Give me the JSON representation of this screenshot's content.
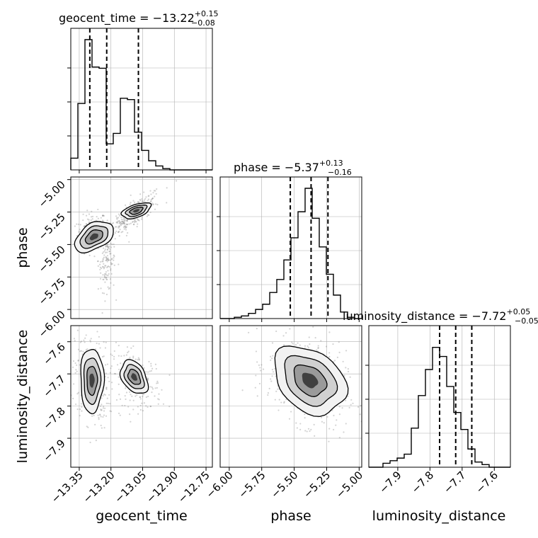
{
  "chart_data": {
    "type": "corner",
    "parameters": [
      "geocent_time",
      "phase",
      "luminosity_distance"
    ],
    "titles": [
      {
        "param": "geocent_time",
        "text": "geocent_time = −13.22",
        "plus": "+0.15",
        "minus": "−0.08"
      },
      {
        "param": "phase",
        "text": "phase = −5.37",
        "plus": "+0.13",
        "minus": "−0.16"
      },
      {
        "param": "luminosity_distance",
        "text": "luminosity_distance = −7.72",
        "plus": "+0.05",
        "minus": "−0.05"
      }
    ],
    "ranges": {
      "geocent_time": [
        -13.39,
        -12.72
      ],
      "phase": [
        -6.07,
        -4.98
      ],
      "luminosity_distance": [
        -7.99,
        -7.55
      ]
    },
    "ticks": {
      "geocent_time": {
        "values": [
          -13.35,
          -13.2,
          -13.05,
          -12.9,
          -12.75
        ],
        "labels": [
          "−13.35",
          "−13.20",
          "−13.05",
          "−12.90",
          "−12.75"
        ]
      },
      "phase": {
        "values": [
          -6.0,
          -5.75,
          -5.5,
          -5.25,
          -5.0
        ],
        "labels": [
          "−6.00",
          "−5.75",
          "−5.50",
          "−5.25",
          "−5.00"
        ]
      },
      "luminosity_distance": {
        "values": [
          -7.9,
          -7.8,
          -7.7,
          -7.6
        ],
        "labels": [
          "−7.9",
          "−7.8",
          "−7.7",
          "−7.6"
        ]
      }
    },
    "axis_labels": {
      "geocent_time": "geocent_time",
      "phase": "phase",
      "luminosity_distance": "luminosity_distance"
    },
    "quantiles": {
      "geocent_time": [
        -13.3,
        -13.22,
        -13.07
      ],
      "phase": [
        -5.53,
        -5.37,
        -5.24
      ],
      "luminosity_distance": [
        -7.77,
        -7.72,
        -7.67
      ]
    },
    "histograms": {
      "geocent_time": {
        "edges_range": [
          -13.39,
          -12.72
        ],
        "counts": [
          0.09,
          0.51,
          1.0,
          0.79,
          0.78,
          0.2,
          0.28,
          0.55,
          0.54,
          0.29,
          0.15,
          0.07,
          0.03,
          0.01,
          0.0,
          0.0,
          0.0,
          0.0,
          0.0,
          0.0
        ]
      },
      "phase": {
        "edges_range": [
          -6.07,
          -4.98
        ],
        "counts": [
          0.0,
          0.0,
          0.01,
          0.02,
          0.04,
          0.07,
          0.11,
          0.2,
          0.3,
          0.45,
          0.62,
          0.82,
          1.0,
          0.77,
          0.55,
          0.34,
          0.18,
          0.05,
          0.01,
          0.0
        ]
      },
      "luminosity_distance": {
        "edges_range": [
          -7.99,
          -7.55
        ],
        "counts": [
          0.0,
          0.0,
          0.03,
          0.05,
          0.07,
          0.1,
          0.3,
          0.55,
          0.75,
          0.92,
          0.85,
          0.62,
          0.42,
          0.29,
          0.14,
          0.04,
          0.02,
          0.0,
          0.0,
          0.0
        ]
      }
    },
    "grid": true,
    "colors": {
      "lines": "#000000",
      "grid": "#b0b0b0",
      "samples": "#808080"
    }
  }
}
